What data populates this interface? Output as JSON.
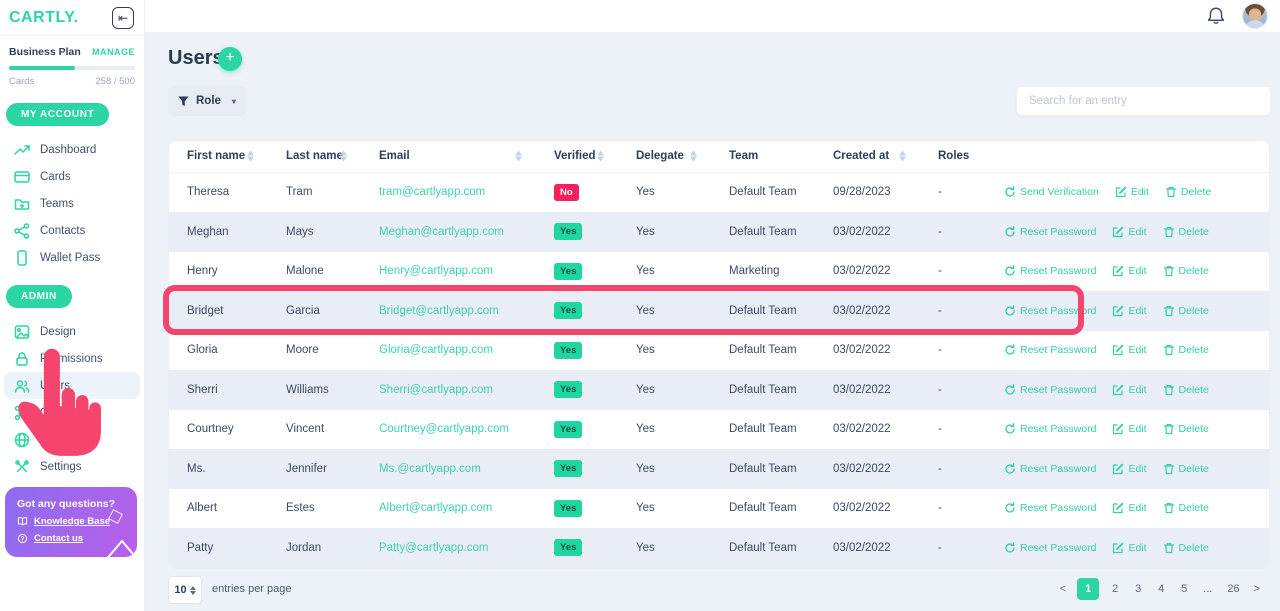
{
  "brand": {
    "logo": "CARTLY.",
    "plan_label": "Business Plan",
    "manage_label": "MANAGE",
    "cards_label": "Cards",
    "cards_usage": "258 / 500",
    "my_account_label": "MY ACCOUNT",
    "admin_label": "ADMIN"
  },
  "sidebar": {
    "account_items": [
      {
        "id": "sidebar-item-dashboard",
        "label": "Dashboard",
        "icon": "trend-icon",
        "state": ""
      },
      {
        "id": "sidebar-item-cards",
        "label": "Cards",
        "icon": "card-icon",
        "state": ""
      },
      {
        "id": "sidebar-item-teams",
        "label": "Teams",
        "icon": "folder-plus-icon",
        "state": ""
      },
      {
        "id": "sidebar-item-contacts",
        "label": "Contacts",
        "icon": "share-icon",
        "state": ""
      },
      {
        "id": "sidebar-item-wallet-pass",
        "label": "Wallet Pass",
        "icon": "phone-icon",
        "state": ""
      }
    ],
    "admin_items": [
      {
        "id": "sidebar-item-design",
        "label": "Design",
        "icon": "image-icon",
        "state": ""
      },
      {
        "id": "sidebar-item-permissions",
        "label": "Permissions",
        "icon": "lock-icon",
        "state": ""
      },
      {
        "id": "sidebar-item-users",
        "label": "Users",
        "icon": "users-icon",
        "state": "active"
      },
      {
        "id": "sidebar-item-qr-code",
        "label": "QR code",
        "icon": "command-icon",
        "state": ""
      },
      {
        "id": "sidebar-item-domains",
        "label": "Domains",
        "icon": "globe-icon",
        "state": ""
      },
      {
        "id": "sidebar-item-settings",
        "label": "Settings",
        "icon": "tools-icon",
        "state": ""
      }
    ]
  },
  "help_card": {
    "title": "Got any questions?",
    "links": [
      {
        "label": "Knowledge Base",
        "icon": "book-icon"
      },
      {
        "label": "Contact us",
        "icon": "question-icon"
      }
    ]
  },
  "header": {
    "title": "Users",
    "add_label": "+"
  },
  "filters": {
    "role_label": "Role",
    "chevron": "▾"
  },
  "search": {
    "placeholder": "Search for an entry"
  },
  "table": {
    "columns": [
      {
        "name": "col-first-name",
        "label": "First name",
        "sortable": true
      },
      {
        "name": "col-last-name",
        "label": "Last name",
        "sortable": true
      },
      {
        "name": "col-email",
        "label": "Email",
        "sortable": true
      },
      {
        "name": "col-verified",
        "label": "Verified",
        "sortable": true
      },
      {
        "name": "col-delegate",
        "label": "Delegate",
        "sortable": true
      },
      {
        "name": "col-team",
        "label": "Team",
        "sortable": false
      },
      {
        "name": "col-created-at",
        "label": "Created at",
        "sortable": true
      },
      {
        "name": "col-roles",
        "label": "Roles",
        "sortable": false
      },
      {
        "name": "col-actions",
        "label": "",
        "sortable": false
      }
    ],
    "actions": {
      "edit": "Edit",
      "delete": "Delete"
    },
    "rows": [
      {
        "first": "Theresa",
        "last": "Tram",
        "email": "tram@cartlyapp.com",
        "verified": "No",
        "delegate": "Yes",
        "team": "Default Team",
        "created": "09/28/2023",
        "roles": "-",
        "action_primary": "Send Verification"
      },
      {
        "first": "Meghan",
        "last": "Mays",
        "email": "Meghan@cartlyapp.com",
        "verified": "Yes",
        "delegate": "Yes",
        "team": "Default Team",
        "created": "03/02/2022",
        "roles": "-",
        "action_primary": "Reset Password"
      },
      {
        "first": "Henry",
        "last": "Malone",
        "email": "Henry@cartlyapp.com",
        "verified": "Yes",
        "delegate": "Yes",
        "team": "Marketing",
        "created": "03/02/2022",
        "roles": "-",
        "action_primary": "Reset Password"
      },
      {
        "first": "Bridget",
        "last": "Garcia",
        "email": "Bridget@cartlyapp.com",
        "verified": "Yes",
        "delegate": "Yes",
        "team": "Default Team",
        "created": "03/02/2022",
        "roles": "-",
        "action_primary": "Reset Password"
      },
      {
        "first": "Gloria",
        "last": "Moore",
        "email": "Gloria@cartlyapp.com",
        "verified": "Yes",
        "delegate": "Yes",
        "team": "Default Team",
        "created": "03/02/2022",
        "roles": "-",
        "action_primary": "Reset Password"
      },
      {
        "first": "Sherri",
        "last": "Williams",
        "email": "Sherri@cartlyapp.com",
        "verified": "Yes",
        "delegate": "Yes",
        "team": "Default Team",
        "created": "03/02/2022",
        "roles": "-",
        "action_primary": "Reset Password"
      },
      {
        "first": "Courtney",
        "last": "Vincent",
        "email": "Courtney@cartlyapp.com",
        "verified": "Yes",
        "delegate": "Yes",
        "team": "Default Team",
        "created": "03/02/2022",
        "roles": "-",
        "action_primary": "Reset Password"
      },
      {
        "first": "Ms.",
        "last": "Jennifer",
        "email": "Ms.@cartlyapp.com",
        "verified": "Yes",
        "delegate": "Yes",
        "team": "Default Team",
        "created": "03/02/2022",
        "roles": "-",
        "action_primary": "Reset Password"
      },
      {
        "first": "Albert",
        "last": "Estes",
        "email": "Albert@cartlyapp.com",
        "verified": "Yes",
        "delegate": "Yes",
        "team": "Default Team",
        "created": "03/02/2022",
        "roles": "-",
        "action_primary": "Reset Password"
      },
      {
        "first": "Patty",
        "last": "Jordan",
        "email": "Patty@cartlyapp.com",
        "verified": "Yes",
        "delegate": "Yes",
        "team": "Default Team",
        "created": "03/02/2022",
        "roles": "-",
        "action_primary": "Reset Password"
      }
    ]
  },
  "footer": {
    "per_page": "10",
    "entries_label": "entries per page",
    "prev": "<",
    "next": ">",
    "pages": [
      "1",
      "2",
      "3",
      "4",
      "5",
      "...",
      "26"
    ],
    "active_page": "1"
  },
  "colors": {
    "accent": "#2bd5a4",
    "badge_yes_bg": "#1fd5a0",
    "badge_no_bg": "#f81f5e",
    "annotation_pink": "#f5456f",
    "main_bg": "#edf1f8",
    "stripe_row_bg": "#e9edf5",
    "help_gradient_start": "#8a6cf0",
    "help_gradient_end": "#b95fe8"
  }
}
